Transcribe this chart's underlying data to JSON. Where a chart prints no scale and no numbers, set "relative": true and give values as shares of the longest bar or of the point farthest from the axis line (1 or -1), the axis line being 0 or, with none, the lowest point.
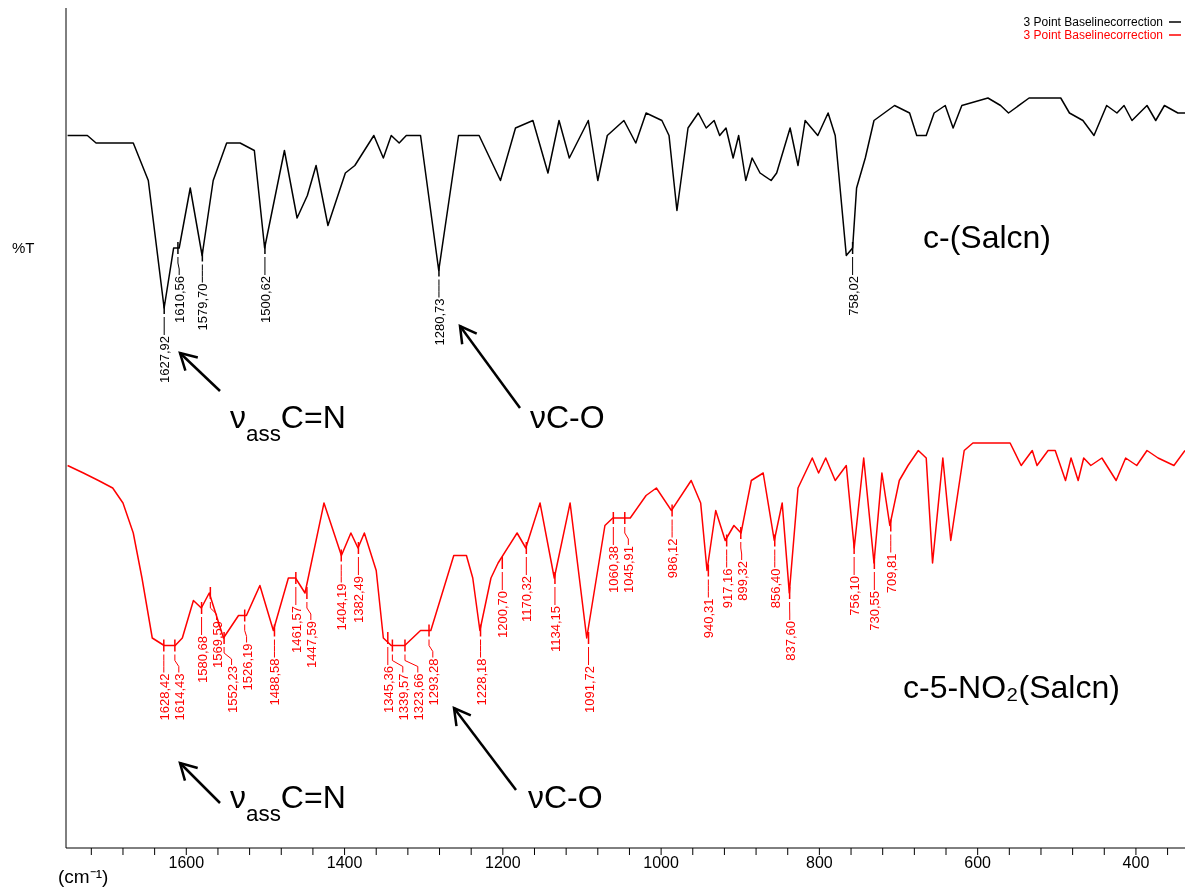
{
  "chart_data": {
    "type": "line",
    "relative": true,
    "ylabel": "%T",
    "xlabel": "(cm⁻¹)",
    "legend": "top right",
    "xlim": [
      1752,
      338
    ],
    "xticks": [
      {
        "value": 1720,
        "label": null
      },
      {
        "value": 1680,
        "label": null
      },
      {
        "value": 1640,
        "label": null
      },
      1600,
      {
        "value": 1560,
        "label": null
      },
      {
        "value": 1520,
        "label": null
      },
      {
        "value": 1480,
        "label": null
      },
      {
        "value": 1440,
        "label": null
      },
      1400,
      {
        "value": 1360,
        "label": null
      },
      {
        "value": 1320,
        "label": null
      },
      {
        "value": 1280,
        "label": null
      },
      {
        "value": 1240,
        "label": null
      },
      1200,
      {
        "value": 1160,
        "label": null
      },
      {
        "value": 1120,
        "label": null
      },
      {
        "value": 1080,
        "label": null
      },
      {
        "value": 1040,
        "label": null
      },
      1000,
      {
        "value": 960,
        "label": null
      },
      {
        "value": 920,
        "label": null
      },
      {
        "value": 880,
        "label": null
      },
      {
        "value": 840,
        "label": null
      },
      800,
      {
        "value": 760,
        "label": null
      },
      {
        "value": 720,
        "label": null
      },
      {
        "value": 680,
        "label": null
      },
      {
        "value": 640,
        "label": null
      },
      600,
      {
        "value": 560,
        "label": null
      },
      {
        "value": 520,
        "label": null
      },
      {
        "value": 480,
        "label": null
      },
      {
        "value": 440,
        "label": null
      },
      400,
      {
        "value": 360,
        "label": null
      }
    ],
    "series": [
      {
        "name": "3 Point Baselinecorrection",
        "color": "#000000",
        "x": [
          1750,
          1725,
          1714,
          1680,
          1667,
          1648,
          1628,
          1616,
          1609,
          1595,
          1580,
          1566,
          1549,
          1532,
          1514,
          1501,
          1476,
          1460,
          1447,
          1436,
          1421,
          1399,
          1387,
          1363,
          1351,
          1341,
          1331,
          1322,
          1304,
          1281,
          1256,
          1230,
          1203,
          1184,
          1162,
          1143,
          1129,
          1116,
          1092,
          1080,
          1068,
          1047,
          1032,
          1019,
          999,
          990,
          980,
          966,
          953,
          943,
          933,
          926,
          918,
          909,
          902,
          893,
          885,
          875,
          861,
          854,
          837,
          827,
          818,
          802,
          789,
          780,
          766,
          758,
          753,
          742,
          731,
          705,
          686,
          677,
          665,
          655,
          641,
          631,
          620,
          587,
          571,
          561,
          535,
          495,
          484,
          467,
          453,
          437,
          424,
          415,
          405,
          386,
          375,
          364,
          347,
          338
        ],
        "values": [
          0.95,
          0.95,
          0.94,
          0.94,
          0.94,
          0.89,
          0.72,
          0.8,
          0.8,
          0.88,
          0.79,
          0.89,
          0.94,
          0.94,
          0.93,
          0.8,
          0.93,
          0.84,
          0.87,
          0.91,
          0.83,
          0.9,
          0.91,
          0.95,
          0.92,
          0.95,
          0.94,
          0.95,
          0.95,
          0.77,
          0.95,
          0.95,
          0.89,
          0.96,
          0.97,
          0.9,
          0.97,
          0.92,
          0.97,
          0.89,
          0.95,
          0.97,
          0.94,
          0.98,
          0.97,
          0.95,
          0.85,
          0.96,
          0.98,
          0.96,
          0.97,
          0.95,
          0.96,
          0.92,
          0.95,
          0.89,
          0.92,
          0.9,
          0.89,
          0.9,
          0.96,
          0.91,
          0.97,
          0.95,
          0.98,
          0.95,
          0.79,
          0.8,
          0.88,
          0.92,
          0.97,
          0.99,
          0.98,
          0.95,
          0.95,
          0.98,
          0.99,
          0.96,
          0.99,
          1.0,
          0.99,
          0.98,
          1.0,
          1.0,
          0.98,
          0.97,
          0.95,
          0.99,
          0.98,
          0.99,
          0.97,
          0.99,
          0.97,
          0.99,
          0.98,
          0.98
        ]
      },
      {
        "name": "3 Point Baselinecorrection",
        "color": "#ff0000",
        "x": [
          1750,
          1730,
          1711,
          1693,
          1680,
          1667,
          1656,
          1643,
          1628,
          1614,
          1605,
          1591,
          1581,
          1571,
          1553,
          1534,
          1524,
          1507,
          1490,
          1471,
          1462,
          1450,
          1426,
          1404,
          1392,
          1383,
          1375,
          1360,
          1351,
          1341,
          1324,
          1304,
          1291,
          1262,
          1246,
          1238,
          1229,
          1215,
          1206,
          1182,
          1171,
          1153,
          1135,
          1115,
          1094,
          1071,
          1061,
          1051,
          1039,
          1019,
          1006,
          987,
          962,
          950,
          942,
          931,
          919,
          908,
          899,
          886,
          871,
          857,
          847,
          838,
          827,
          809,
          801,
          792,
          780,
          766,
          756,
          744,
          731,
          721,
          711,
          699,
          688,
          675,
          665,
          657,
          644,
          634,
          617,
          606,
          582,
          559,
          545,
          531,
          525,
          511,
          502,
          489,
          482,
          473,
          466,
          457,
          443,
          425,
          413,
          399,
          386,
          372,
          352,
          338
        ],
        "values": [
          0.51,
          0.5,
          0.49,
          0.48,
          0.46,
          0.42,
          0.36,
          0.28,
          0.27,
          0.27,
          0.28,
          0.33,
          0.32,
          0.34,
          0.28,
          0.31,
          0.31,
          0.35,
          0.29,
          0.36,
          0.36,
          0.34,
          0.46,
          0.39,
          0.42,
          0.4,
          0.42,
          0.37,
          0.28,
          0.27,
          0.27,
          0.29,
          0.29,
          0.39,
          0.39,
          0.36,
          0.29,
          0.36,
          0.38,
          0.42,
          0.4,
          0.46,
          0.36,
          0.46,
          0.28,
          0.43,
          0.44,
          0.44,
          0.44,
          0.47,
          0.48,
          0.45,
          0.49,
          0.46,
          0.37,
          0.45,
          0.41,
          0.43,
          0.42,
          0.49,
          0.5,
          0.41,
          0.46,
          0.34,
          0.48,
          0.52,
          0.5,
          0.52,
          0.49,
          0.51,
          0.4,
          0.52,
          0.38,
          0.5,
          0.43,
          0.49,
          0.51,
          0.53,
          0.52,
          0.38,
          0.52,
          0.41,
          0.53,
          0.54,
          0.54,
          0.54,
          0.51,
          0.53,
          0.51,
          0.53,
          0.53,
          0.49,
          0.52,
          0.49,
          0.52,
          0.51,
          0.52,
          0.49,
          0.52,
          0.51,
          0.53,
          0.52,
          0.51,
          0.53
        ]
      }
    ],
    "annotations": [
      {
        "text": "1627,92",
        "x": 1627.92,
        "y": 0.72
      },
      {
        "text": "1610,56",
        "x": 1610.56,
        "y": 0.8
      },
      {
        "text": "1579,70",
        "x": 1579.7,
        "y": 0.79
      },
      {
        "text": "1500,62",
        "x": 1500.62,
        "y": 0.8
      },
      {
        "text": "1280,73",
        "x": 1280.73,
        "y": 0.77
      },
      {
        "text": "758,02",
        "x": 758.02,
        "y": 0.8
      },
      {
        "text": "1628,42",
        "x": 1628.42,
        "y": 0.27
      },
      {
        "text": "1614,43",
        "x": 1614.43,
        "y": 0.27
      },
      {
        "text": "1580,68",
        "x": 1580.68,
        "y": 0.32
      },
      {
        "text": "1569,59",
        "x": 1569.59,
        "y": 0.34
      },
      {
        "text": "1552,23",
        "x": 1552.23,
        "y": 0.28
      },
      {
        "text": "1526,19",
        "x": 1526.19,
        "y": 0.31
      },
      {
        "text": "1488,58",
        "x": 1488.58,
        "y": 0.29
      },
      {
        "text": "1461,57",
        "x": 1461.57,
        "y": 0.36
      },
      {
        "text": "1447,59",
        "x": 1447.59,
        "y": 0.34
      },
      {
        "text": "1404,19",
        "x": 1404.19,
        "y": 0.39
      },
      {
        "text": "1382,49",
        "x": 1382.49,
        "y": 0.4
      },
      {
        "text": "1345,36",
        "x": 1345.36,
        "y": 0.28
      },
      {
        "text": "1339,57",
        "x": 1339.57,
        "y": 0.27
      },
      {
        "text": "1323,66",
        "x": 1323.66,
        "y": 0.27
      },
      {
        "text": "1293,28",
        "x": 1293.28,
        "y": 0.29
      },
      {
        "text": "1228,18",
        "x": 1228.18,
        "y": 0.29
      },
      {
        "text": "1200,70",
        "x": 1200.7,
        "y": 0.38
      },
      {
        "text": "1170,32",
        "x": 1170.32,
        "y": 0.4
      },
      {
        "text": "1134,15",
        "x": 1134.15,
        "y": 0.36
      },
      {
        "text": "1091,72",
        "x": 1091.72,
        "y": 0.28
      },
      {
        "text": "1060,38",
        "x": 1060.38,
        "y": 0.44
      },
      {
        "text": "1045,91",
        "x": 1045.91,
        "y": 0.44
      },
      {
        "text": "986,12",
        "x": 986.12,
        "y": 0.45
      },
      {
        "text": "940,31",
        "x": 940.31,
        "y": 0.37
      },
      {
        "text": "917,16",
        "x": 917.16,
        "y": 0.41
      },
      {
        "text": "899,32",
        "x": 899.32,
        "y": 0.42
      },
      {
        "text": "856,40",
        "x": 856.4,
        "y": 0.41
      },
      {
        "text": "837,60",
        "x": 837.6,
        "y": 0.34
      },
      {
        "text": "756,10",
        "x": 756.1,
        "y": 0.4
      },
      {
        "text": "730,55",
        "x": 730.55,
        "y": 0.38
      },
      {
        "text": "709,81",
        "x": 709.81,
        "y": 0.43
      },
      "ν$_{ass}$C=N",
      "νC-O",
      "c-(Salcn)",
      "ν$_{ass}$C=N",
      "νC-O",
      "c-5-NO₂(Salcn)"
    ]
  }
}
